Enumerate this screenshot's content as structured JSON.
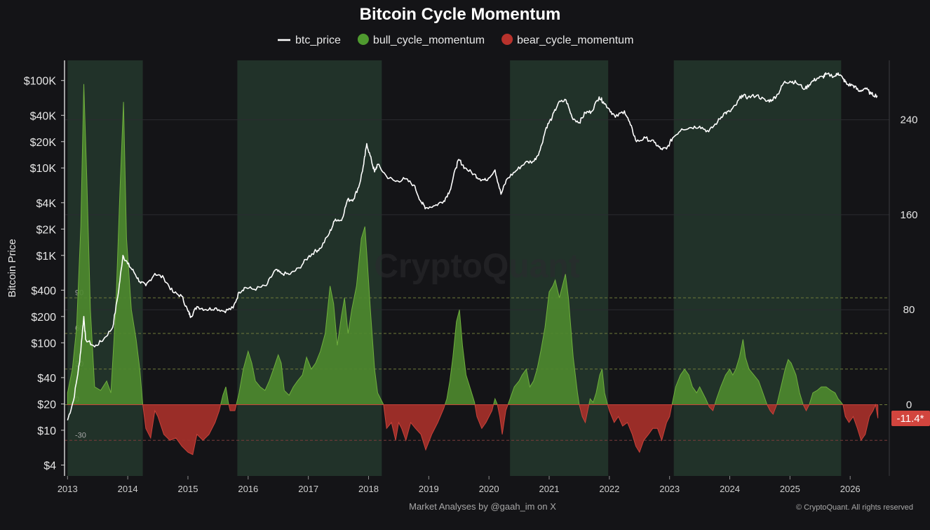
{
  "chart_data": {
    "type": "line",
    "title": "Bitcoin Cycle Momentum",
    "legend_position": "top-center",
    "legend": [
      {
        "key": "btc_price",
        "label": "btc_price",
        "color": "#ffffff",
        "marker": "line"
      },
      {
        "key": "bull",
        "label": "bull_cycle_momentum",
        "color": "#4f9a2f",
        "marker": "dot"
      },
      {
        "key": "bear",
        "label": "bear_cycle_momentum",
        "color": "#b8322c",
        "marker": "dot"
      }
    ],
    "ylabel_left": "Bitcoin Price",
    "left_axis": {
      "scale": "log",
      "range": [
        3,
        170000
      ],
      "ticks": [
        {
          "value": 100000,
          "label": "$100K"
        },
        {
          "value": 40000,
          "label": "$40K"
        },
        {
          "value": 20000,
          "label": "$20K"
        },
        {
          "value": 10000,
          "label": "$10K"
        },
        {
          "value": 4000,
          "label": "$4K"
        },
        {
          "value": 2000,
          "label": "$2K"
        },
        {
          "value": 1000,
          "label": "$1K"
        },
        {
          "value": 400,
          "label": "$400"
        },
        {
          "value": 200,
          "label": "$200"
        },
        {
          "value": 100,
          "label": "$100"
        },
        {
          "value": 40,
          "label": "$40"
        },
        {
          "value": 20,
          "label": "$20"
        },
        {
          "value": 10,
          "label": "$10"
        },
        {
          "value": 4,
          "label": "$4"
        }
      ]
    },
    "right_axis": {
      "range": [
        -60,
        290
      ],
      "ticks": [
        {
          "value": 240,
          "label": "240"
        },
        {
          "value": 160,
          "label": "160"
        },
        {
          "value": 80,
          "label": "80"
        },
        {
          "value": 0,
          "label": "0"
        }
      ]
    },
    "x_axis": {
      "range": [
        2012.95,
        2026.65
      ],
      "ticks": [
        {
          "value": 2013,
          "label": "2013"
        },
        {
          "value": 2014,
          "label": "2014"
        },
        {
          "value": 2015,
          "label": "2015"
        },
        {
          "value": 2016,
          "label": "2016"
        },
        {
          "value": 2017,
          "label": "2017"
        },
        {
          "value": 2018,
          "label": "2018"
        },
        {
          "value": 2019,
          "label": "2019"
        },
        {
          "value": 2020,
          "label": "2020"
        },
        {
          "value": 2021,
          "label": "2021"
        },
        {
          "value": 2022,
          "label": "2022"
        },
        {
          "value": 2023,
          "label": "2023"
        },
        {
          "value": 2024,
          "label": "2024"
        },
        {
          "value": 2025,
          "label": "2025"
        },
        {
          "value": 2026,
          "label": "2026"
        }
      ]
    },
    "reference_lines": [
      {
        "value": 90,
        "label": "90",
        "color": "#6e7a3a"
      },
      {
        "value": 60,
        "label": "60",
        "color": "#6e7a3a"
      },
      {
        "value": 30,
        "label": "30",
        "color": "#6e7a3a"
      },
      {
        "value": 0,
        "label": "0",
        "color": "#6e7a3a"
      },
      {
        "value": -30,
        "label": "-30",
        "color": "#7a3a3a"
      }
    ],
    "bull_zones": [
      [
        2013.0,
        2014.25
      ],
      [
        2015.82,
        2018.22
      ],
      [
        2020.35,
        2021.98
      ],
      [
        2023.07,
        2025.85
      ]
    ],
    "current_value_label": "-11.4*",
    "btc_price": [
      [
        2013.0,
        13
      ],
      [
        2013.1,
        22
      ],
      [
        2013.2,
        60
      ],
      [
        2013.27,
        200
      ],
      [
        2013.3,
        110
      ],
      [
        2013.45,
        90
      ],
      [
        2013.6,
        110
      ],
      [
        2013.75,
        150
      ],
      [
        2013.85,
        400
      ],
      [
        2013.92,
        1000
      ],
      [
        2014.0,
        800
      ],
      [
        2014.1,
        650
      ],
      [
        2014.2,
        500
      ],
      [
        2014.3,
        450
      ],
      [
        2014.45,
        620
      ],
      [
        2014.6,
        550
      ],
      [
        2014.75,
        380
      ],
      [
        2014.9,
        340
      ],
      [
        2015.0,
        230
      ],
      [
        2015.05,
        200
      ],
      [
        2015.15,
        260
      ],
      [
        2015.3,
        240
      ],
      [
        2015.45,
        250
      ],
      [
        2015.6,
        230
      ],
      [
        2015.75,
        250
      ],
      [
        2015.85,
        380
      ],
      [
        2015.95,
        430
      ],
      [
        2016.1,
        410
      ],
      [
        2016.3,
        450
      ],
      [
        2016.45,
        680
      ],
      [
        2016.55,
        620
      ],
      [
        2016.7,
        610
      ],
      [
        2016.85,
        720
      ],
      [
        2017.0,
        960
      ],
      [
        2017.1,
        1100
      ],
      [
        2017.2,
        1200
      ],
      [
        2017.35,
        1800
      ],
      [
        2017.45,
        2600
      ],
      [
        2017.55,
        2500
      ],
      [
        2017.65,
        4300
      ],
      [
        2017.75,
        4400
      ],
      [
        2017.85,
        6500
      ],
      [
        2017.92,
        11000
      ],
      [
        2017.97,
        19000
      ],
      [
        2018.05,
        12000
      ],
      [
        2018.1,
        9000
      ],
      [
        2018.15,
        11000
      ],
      [
        2018.3,
        8000
      ],
      [
        2018.45,
        7000
      ],
      [
        2018.6,
        7500
      ],
      [
        2018.75,
        6400
      ],
      [
        2018.88,
        4000
      ],
      [
        2018.95,
        3500
      ],
      [
        2019.1,
        3700
      ],
      [
        2019.25,
        4200
      ],
      [
        2019.35,
        5500
      ],
      [
        2019.45,
        10000
      ],
      [
        2019.5,
        12500
      ],
      [
        2019.6,
        10000
      ],
      [
        2019.75,
        8500
      ],
      [
        2019.85,
        7500
      ],
      [
        2019.95,
        7200
      ],
      [
        2020.1,
        9500
      ],
      [
        2020.2,
        5000
      ],
      [
        2020.3,
        7500
      ],
      [
        2020.45,
        9300
      ],
      [
        2020.6,
        11500
      ],
      [
        2020.75,
        12000
      ],
      [
        2020.85,
        16000
      ],
      [
        2020.95,
        29000
      ],
      [
        2021.05,
        38000
      ],
      [
        2021.15,
        55000
      ],
      [
        2021.28,
        60000
      ],
      [
        2021.38,
        38000
      ],
      [
        2021.5,
        33000
      ],
      [
        2021.6,
        43000
      ],
      [
        2021.7,
        44000
      ],
      [
        2021.83,
        65000
      ],
      [
        2021.9,
        57000
      ],
      [
        2022.0,
        47000
      ],
      [
        2022.1,
        38000
      ],
      [
        2022.25,
        45000
      ],
      [
        2022.35,
        31000
      ],
      [
        2022.45,
        20000
      ],
      [
        2022.6,
        22000
      ],
      [
        2022.75,
        19500
      ],
      [
        2022.85,
        16500
      ],
      [
        2022.95,
        16500
      ],
      [
        2023.05,
        22000
      ],
      [
        2023.2,
        28000
      ],
      [
        2023.35,
        29000
      ],
      [
        2023.5,
        30000
      ],
      [
        2023.65,
        26000
      ],
      [
        2023.8,
        34000
      ],
      [
        2023.9,
        42000
      ],
      [
        2024.0,
        44000
      ],
      [
        2024.1,
        52000
      ],
      [
        2024.2,
        68000
      ],
      [
        2024.3,
        64000
      ],
      [
        2024.45,
        68000
      ],
      [
        2024.6,
        58000
      ],
      [
        2024.7,
        60000
      ],
      [
        2024.8,
        70000
      ],
      [
        2024.9,
        95000
      ],
      [
        2025.0,
        98000
      ],
      [
        2025.1,
        95000
      ],
      [
        2025.25,
        80000
      ],
      [
        2025.35,
        95000
      ],
      [
        2025.45,
        106000
      ],
      [
        2025.55,
        110000
      ],
      [
        2025.6,
        118000
      ],
      [
        2025.75,
        112000
      ],
      [
        2025.8,
        122000
      ],
      [
        2025.88,
        105000
      ],
      [
        2025.95,
        90000
      ],
      [
        2026.05,
        88000
      ],
      [
        2026.15,
        75000
      ],
      [
        2026.25,
        82000
      ],
      [
        2026.35,
        70000
      ],
      [
        2026.45,
        67000
      ]
    ],
    "momentum": [
      [
        2013.0,
        10
      ],
      [
        2013.08,
        30
      ],
      [
        2013.15,
        65
      ],
      [
        2013.22,
        150
      ],
      [
        2013.27,
        270
      ],
      [
        2013.32,
        190
      ],
      [
        2013.38,
        80
      ],
      [
        2013.45,
        15
      ],
      [
        2013.55,
        12
      ],
      [
        2013.65,
        20
      ],
      [
        2013.72,
        10
      ],
      [
        2013.8,
        80
      ],
      [
        2013.87,
        180
      ],
      [
        2013.93,
        255
      ],
      [
        2013.98,
        140
      ],
      [
        2014.06,
        80
      ],
      [
        2014.14,
        55
      ],
      [
        2014.2,
        30
      ],
      [
        2014.25,
        0
      ],
      [
        2014.3,
        -20
      ],
      [
        2014.38,
        -28
      ],
      [
        2014.45,
        -5
      ],
      [
        2014.5,
        -10
      ],
      [
        2014.6,
        -25
      ],
      [
        2014.7,
        -30
      ],
      [
        2014.8,
        -28
      ],
      [
        2014.9,
        -35
      ],
      [
        2015.0,
        -40
      ],
      [
        2015.08,
        -42
      ],
      [
        2015.15,
        -25
      ],
      [
        2015.25,
        -30
      ],
      [
        2015.35,
        -25
      ],
      [
        2015.45,
        -15
      ],
      [
        2015.52,
        -5
      ],
      [
        2015.58,
        8
      ],
      [
        2015.63,
        15
      ],
      [
        2015.67,
        2
      ],
      [
        2015.7,
        -5
      ],
      [
        2015.78,
        -5
      ],
      [
        2015.85,
        10
      ],
      [
        2015.92,
        30
      ],
      [
        2016.0,
        45
      ],
      [
        2016.06,
        35
      ],
      [
        2016.12,
        20
      ],
      [
        2016.2,
        15
      ],
      [
        2016.28,
        12
      ],
      [
        2016.35,
        20
      ],
      [
        2016.42,
        30
      ],
      [
        2016.5,
        42
      ],
      [
        2016.55,
        35
      ],
      [
        2016.6,
        12
      ],
      [
        2016.68,
        8
      ],
      [
        2016.75,
        15
      ],
      [
        2016.82,
        20
      ],
      [
        2016.9,
        25
      ],
      [
        2016.97,
        40
      ],
      [
        2017.05,
        30
      ],
      [
        2017.12,
        35
      ],
      [
        2017.2,
        45
      ],
      [
        2017.28,
        60
      ],
      [
        2017.36,
        100
      ],
      [
        2017.42,
        85
      ],
      [
        2017.48,
        50
      ],
      [
        2017.55,
        75
      ],
      [
        2017.6,
        90
      ],
      [
        2017.66,
        60
      ],
      [
        2017.72,
        80
      ],
      [
        2017.8,
        100
      ],
      [
        2017.88,
        140
      ],
      [
        2017.94,
        150
      ],
      [
        2017.98,
        120
      ],
      [
        2018.03,
        80
      ],
      [
        2018.1,
        30
      ],
      [
        2018.15,
        10
      ],
      [
        2018.2,
        5
      ],
      [
        2018.25,
        0
      ],
      [
        2018.3,
        -20
      ],
      [
        2018.38,
        -15
      ],
      [
        2018.45,
        -30
      ],
      [
        2018.5,
        -15
      ],
      [
        2018.55,
        -20
      ],
      [
        2018.62,
        -30
      ],
      [
        2018.7,
        -15
      ],
      [
        2018.78,
        -20
      ],
      [
        2018.87,
        -25
      ],
      [
        2018.95,
        -38
      ],
      [
        2019.05,
        -25
      ],
      [
        2019.15,
        -15
      ],
      [
        2019.25,
        -3
      ],
      [
        2019.3,
        5
      ],
      [
        2019.35,
        20
      ],
      [
        2019.4,
        40
      ],
      [
        2019.46,
        70
      ],
      [
        2019.51,
        80
      ],
      [
        2019.56,
        50
      ],
      [
        2019.62,
        25
      ],
      [
        2019.7,
        12
      ],
      [
        2019.76,
        2
      ],
      [
        2019.8,
        -10
      ],
      [
        2019.88,
        -20
      ],
      [
        2019.95,
        -15
      ],
      [
        2020.05,
        -5
      ],
      [
        2020.1,
        5
      ],
      [
        2020.14,
        0
      ],
      [
        2020.18,
        -10
      ],
      [
        2020.22,
        -25
      ],
      [
        2020.28,
        -5
      ],
      [
        2020.35,
        5
      ],
      [
        2020.42,
        15
      ],
      [
        2020.5,
        20
      ],
      [
        2020.55,
        25
      ],
      [
        2020.62,
        30
      ],
      [
        2020.68,
        15
      ],
      [
        2020.74,
        20
      ],
      [
        2020.8,
        30
      ],
      [
        2020.86,
        45
      ],
      [
        2020.93,
        65
      ],
      [
        2021.0,
        95
      ],
      [
        2021.06,
        100
      ],
      [
        2021.1,
        105
      ],
      [
        2021.17,
        90
      ],
      [
        2021.22,
        100
      ],
      [
        2021.27,
        110
      ],
      [
        2021.32,
        90
      ],
      [
        2021.4,
        40
      ],
      [
        2021.47,
        10
      ],
      [
        2021.5,
        0
      ],
      [
        2021.55,
        -10
      ],
      [
        2021.6,
        -15
      ],
      [
        2021.64,
        -5
      ],
      [
        2021.68,
        5
      ],
      [
        2021.73,
        2
      ],
      [
        2021.78,
        10
      ],
      [
        2021.84,
        25
      ],
      [
        2021.88,
        30
      ],
      [
        2021.92,
        10
      ],
      [
        2021.97,
        0
      ],
      [
        2022.0,
        -5
      ],
      [
        2022.08,
        -15
      ],
      [
        2022.15,
        -10
      ],
      [
        2022.22,
        -18
      ],
      [
        2022.3,
        -15
      ],
      [
        2022.38,
        -25
      ],
      [
        2022.44,
        -35
      ],
      [
        2022.5,
        -40
      ],
      [
        2022.57,
        -30
      ],
      [
        2022.65,
        -25
      ],
      [
        2022.72,
        -20
      ],
      [
        2022.8,
        -20
      ],
      [
        2022.87,
        -30
      ],
      [
        2022.95,
        -15
      ],
      [
        2023.0,
        -10
      ],
      [
        2023.04,
        0
      ],
      [
        2023.1,
        15
      ],
      [
        2023.18,
        25
      ],
      [
        2023.25,
        30
      ],
      [
        2023.32,
        25
      ],
      [
        2023.38,
        15
      ],
      [
        2023.45,
        10
      ],
      [
        2023.5,
        15
      ],
      [
        2023.55,
        10
      ],
      [
        2023.6,
        5
      ],
      [
        2023.66,
        -2
      ],
      [
        2023.72,
        -5
      ],
      [
        2023.78,
        5
      ],
      [
        2023.85,
        15
      ],
      [
        2023.93,
        25
      ],
      [
        2024.0,
        30
      ],
      [
        2024.05,
        25
      ],
      [
        2024.1,
        30
      ],
      [
        2024.16,
        40
      ],
      [
        2024.22,
        55
      ],
      [
        2024.26,
        40
      ],
      [
        2024.32,
        30
      ],
      [
        2024.4,
        25
      ],
      [
        2024.48,
        20
      ],
      [
        2024.55,
        10
      ],
      [
        2024.62,
        0
      ],
      [
        2024.67,
        -5
      ],
      [
        2024.72,
        -8
      ],
      [
        2024.78,
        0
      ],
      [
        2024.85,
        15
      ],
      [
        2024.92,
        30
      ],
      [
        2024.97,
        38
      ],
      [
        2025.02,
        35
      ],
      [
        2025.1,
        25
      ],
      [
        2025.16,
        10
      ],
      [
        2025.22,
        0
      ],
      [
        2025.27,
        -5
      ],
      [
        2025.32,
        0
      ],
      [
        2025.38,
        10
      ],
      [
        2025.45,
        12
      ],
      [
        2025.52,
        15
      ],
      [
        2025.6,
        15
      ],
      [
        2025.68,
        12
      ],
      [
        2025.75,
        10
      ],
      [
        2025.8,
        5
      ],
      [
        2025.85,
        2
      ],
      [
        2025.88,
        0
      ],
      [
        2025.92,
        -10
      ],
      [
        2025.98,
        -15
      ],
      [
        2026.05,
        -10
      ],
      [
        2026.12,
        -20
      ],
      [
        2026.18,
        -30
      ],
      [
        2026.25,
        -25
      ],
      [
        2026.32,
        -10
      ],
      [
        2026.38,
        -5
      ],
      [
        2026.42,
        0
      ],
      [
        2026.46,
        -11.4
      ]
    ]
  },
  "watermark": "CryptoQuant",
  "footer": {
    "credit": "Market Analyses by @gaah_im on X",
    "copyright": "© CryptoQuant. All rights reserved"
  }
}
